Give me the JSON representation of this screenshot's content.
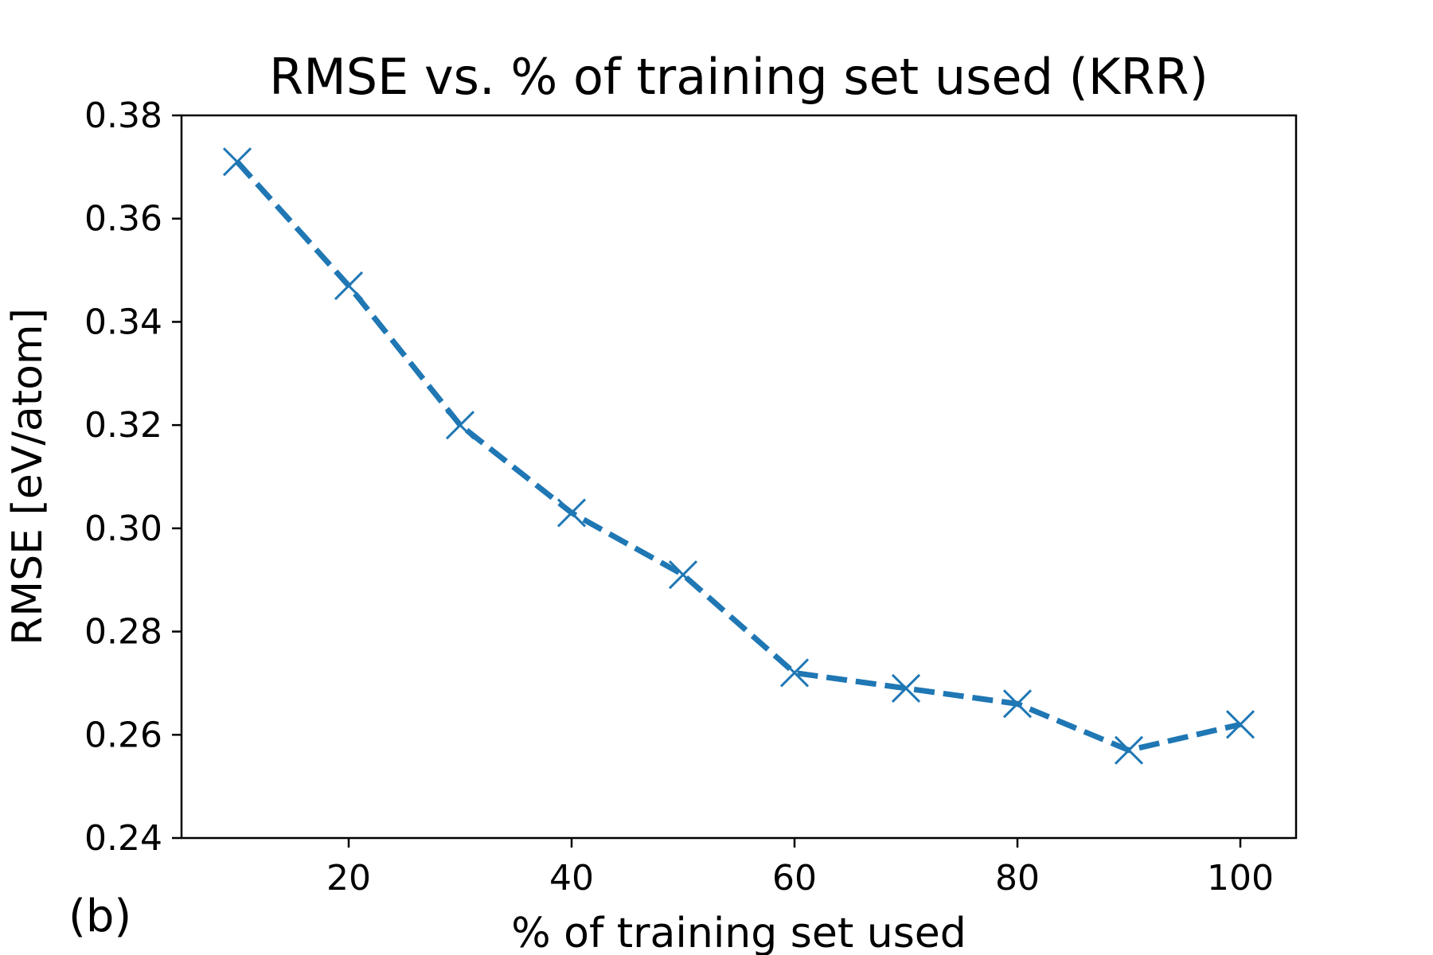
{
  "chart_data": {
    "type": "line",
    "title": "RMSE vs. % of training set used (KRR)",
    "xlabel": "% of training set used",
    "ylabel": "RMSE [eV/atom]",
    "panel_label": "(b)",
    "xlim": [
      5,
      105
    ],
    "ylim": [
      0.24,
      0.38
    ],
    "xticks": [
      20,
      40,
      60,
      80,
      100
    ],
    "xtick_labels": [
      "20",
      "40",
      "60",
      "80",
      "100"
    ],
    "yticks": [
      0.24,
      0.26,
      0.28,
      0.3,
      0.32,
      0.34,
      0.36,
      0.38
    ],
    "ytick_labels": [
      "0.24",
      "0.26",
      "0.28",
      "0.30",
      "0.32",
      "0.34",
      "0.36",
      "0.38"
    ],
    "grid": false,
    "series": [
      {
        "color": "#1f77b4",
        "line_style": "dashed",
        "marker": "x",
        "x": [
          10,
          20,
          30,
          40,
          50,
          60,
          70,
          80,
          90,
          100
        ],
        "y": [
          0.371,
          0.347,
          0.32,
          0.303,
          0.291,
          0.272,
          0.269,
          0.266,
          0.257,
          0.262
        ]
      }
    ]
  }
}
